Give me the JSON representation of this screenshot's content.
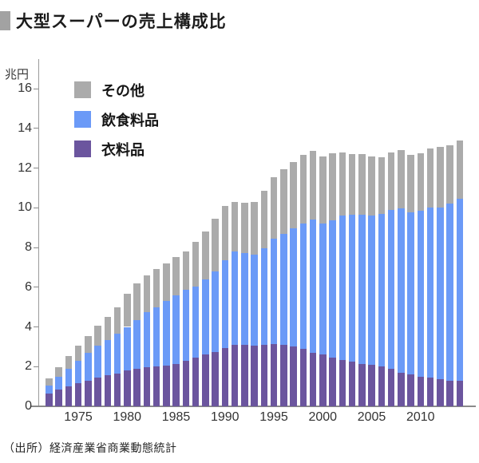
{
  "title": "大型スーパーの売上構成比",
  "y_axis": {
    "unit": "兆円",
    "ticks": [
      0,
      2,
      4,
      6,
      8,
      10,
      12,
      14,
      16
    ]
  },
  "x_axis": {
    "labels": [
      "1975",
      "1980",
      "1985",
      "1990",
      "1995",
      "2000",
      "2005",
      "2010"
    ]
  },
  "legend": {
    "items": [
      {
        "label": "その他",
        "color": "#ababab"
      },
      {
        "label": "飲食料品",
        "color": "#6b9af7"
      },
      {
        "label": "衣料品",
        "color": "#6b559e"
      }
    ]
  },
  "source": "（出所）経済産業省商業動態統計",
  "chart_data": {
    "type": "bar",
    "stacked": true,
    "title": "大型スーパーの売上構成比",
    "ylabel": "兆円",
    "ylim": [
      0,
      16
    ],
    "grid": false,
    "legend_position": "top-left-inside",
    "x": [
      1972,
      1973,
      1974,
      1975,
      1976,
      1977,
      1978,
      1979,
      1980,
      1981,
      1982,
      1983,
      1984,
      1985,
      1986,
      1987,
      1988,
      1989,
      1990,
      1991,
      1992,
      1993,
      1994,
      1995,
      1996,
      1997,
      1998,
      1999,
      2000,
      2001,
      2002,
      2003,
      2004,
      2005,
      2006,
      2007,
      2008,
      2009,
      2010,
      2011,
      2012,
      2013,
      2014
    ],
    "series": [
      {
        "name": "衣料品",
        "color": "#6b559e",
        "values": [
          0.65,
          0.85,
          1.0,
          1.15,
          1.3,
          1.45,
          1.55,
          1.65,
          1.8,
          1.9,
          1.95,
          2.0,
          2.05,
          2.15,
          2.3,
          2.45,
          2.6,
          2.75,
          2.95,
          3.1,
          3.1,
          3.05,
          3.1,
          3.15,
          3.1,
          3.0,
          2.9,
          2.7,
          2.6,
          2.45,
          2.35,
          2.25,
          2.15,
          2.1,
          2.0,
          1.9,
          1.7,
          1.6,
          1.5,
          1.45,
          1.35,
          1.3,
          1.3
        ]
      },
      {
        "name": "飲食料品",
        "color": "#6b9af7",
        "values": [
          0.4,
          0.65,
          0.9,
          1.15,
          1.4,
          1.6,
          1.8,
          2.0,
          2.2,
          2.45,
          2.8,
          3.0,
          3.25,
          3.45,
          3.55,
          3.6,
          3.8,
          4.05,
          4.4,
          4.7,
          4.6,
          4.6,
          4.85,
          5.3,
          5.6,
          5.95,
          6.3,
          6.7,
          6.6,
          6.9,
          7.25,
          7.4,
          7.5,
          7.5,
          7.7,
          8.0,
          8.25,
          8.15,
          8.35,
          8.55,
          8.65,
          8.9,
          9.15
        ]
      },
      {
        "name": "その他",
        "color": "#ababab",
        "values": [
          0.35,
          0.45,
          0.65,
          0.75,
          0.85,
          1.0,
          1.15,
          1.35,
          1.65,
          1.85,
          1.85,
          1.9,
          1.9,
          1.9,
          1.95,
          2.25,
          2.4,
          2.65,
          2.75,
          2.5,
          2.55,
          2.65,
          2.9,
          3.1,
          3.25,
          3.35,
          3.45,
          3.45,
          3.4,
          3.4,
          3.2,
          3.05,
          3.05,
          3.0,
          2.85,
          2.9,
          2.95,
          2.9,
          2.9,
          3.0,
          3.05,
          2.95,
          2.95
        ]
      }
    ],
    "totals": [
      1.4,
      1.95,
      2.55,
      3.05,
      3.55,
      4.05,
      4.5,
      5.0,
      5.65,
      6.2,
      6.6,
      6.9,
      7.2,
      7.5,
      7.8,
      8.3,
      8.8,
      9.45,
      10.1,
      10.3,
      10.25,
      10.3,
      10.85,
      11.55,
      11.95,
      12.3,
      12.65,
      12.85,
      12.6,
      12.75,
      12.8,
      12.7,
      12.7,
      12.6,
      12.55,
      12.8,
      12.9,
      12.65,
      12.75,
      13.0,
      13.05,
      13.15,
      13.4
    ]
  }
}
